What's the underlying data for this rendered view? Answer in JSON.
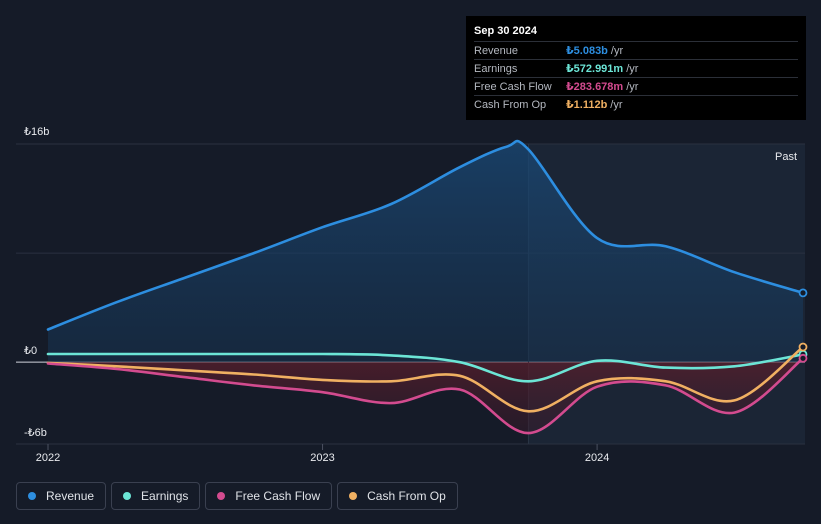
{
  "tooltip": {
    "date": "Sep 30 2024",
    "rows": [
      {
        "label": "Revenue",
        "value": "₺5.083b",
        "unit": "/yr",
        "color": "#2d8ee0"
      },
      {
        "label": "Earnings",
        "value": "₺572.991m",
        "unit": "/yr",
        "color": "#6ce5d6"
      },
      {
        "label": "Free Cash Flow",
        "value": "₺283.678m",
        "unit": "/yr",
        "color": "#d34b8f"
      },
      {
        "label": "Cash From Op",
        "value": "₺1.112b",
        "unit": "/yr",
        "color": "#f0b062"
      }
    ]
  },
  "legend": [
    {
      "label": "Revenue",
      "color": "#2d8ee0"
    },
    {
      "label": "Earnings",
      "color": "#6ce5d6"
    },
    {
      "label": "Free Cash Flow",
      "color": "#d34b8f"
    },
    {
      "label": "Cash From Op",
      "color": "#f0b062"
    }
  ],
  "chart_data": {
    "type": "line",
    "title": "",
    "xlabel": "",
    "ylabel": "",
    "unit": "TRY billions",
    "y_tick_labels": [
      "₺16b",
      "₺0",
      "-₺6b"
    ],
    "y_ticks": [
      16,
      0,
      -6
    ],
    "ylim": [
      -6,
      16
    ],
    "xlim": [
      2022.0,
      2024.75
    ],
    "x_tick_labels": [
      "2022",
      "2023",
      "2024"
    ],
    "x_ticks": [
      2022,
      2023,
      2024
    ],
    "past_label": "Past",
    "highlight_start": 2023.75,
    "series": [
      {
        "name": "Revenue",
        "color": "#2d8ee0",
        "x": [
          2022.0,
          2022.25,
          2022.5,
          2022.75,
          2023.0,
          2023.25,
          2023.5,
          2023.67,
          2023.75,
          2024.0,
          2024.25,
          2024.5,
          2024.75
        ],
        "y": [
          2.4,
          4.4,
          6.2,
          8.0,
          9.9,
          11.6,
          14.3,
          15.8,
          15.6,
          9.1,
          8.5,
          6.6,
          5.083
        ]
      },
      {
        "name": "Earnings",
        "color": "#6ce5d6",
        "x": [
          2022.0,
          2022.25,
          2022.5,
          2022.75,
          2023.0,
          2023.25,
          2023.5,
          2023.75,
          2024.0,
          2024.25,
          2024.5,
          2024.75
        ],
        "y": [
          0.6,
          0.6,
          0.6,
          0.6,
          0.6,
          0.5,
          0.0,
          -1.4,
          0.1,
          -0.4,
          -0.3,
          0.573
        ]
      },
      {
        "name": "Free Cash Flow",
        "color": "#d34b8f",
        "x": [
          2022.0,
          2022.25,
          2022.5,
          2022.75,
          2023.0,
          2023.25,
          2023.5,
          2023.75,
          2024.0,
          2024.25,
          2024.5,
          2024.75
        ],
        "y": [
          -0.1,
          -0.5,
          -1.1,
          -1.7,
          -2.2,
          -3.0,
          -2.0,
          -5.2,
          -1.8,
          -1.7,
          -3.7,
          0.284
        ]
      },
      {
        "name": "Cash From Op",
        "color": "#f0b062",
        "x": [
          2022.0,
          2022.25,
          2022.5,
          2022.75,
          2023.0,
          2023.25,
          2023.5,
          2023.75,
          2024.0,
          2024.25,
          2024.5,
          2024.75
        ],
        "y": [
          -0.05,
          -0.3,
          -0.6,
          -0.9,
          -1.3,
          -1.4,
          -1.0,
          -3.6,
          -1.4,
          -1.4,
          -2.8,
          1.112
        ]
      }
    ]
  }
}
